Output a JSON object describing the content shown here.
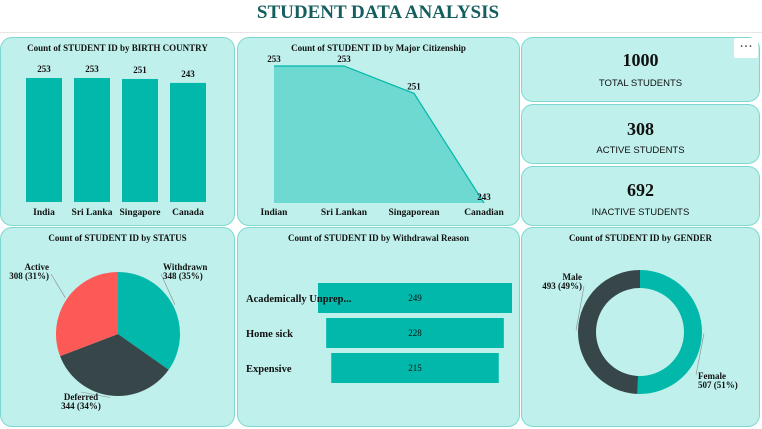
{
  "page": {
    "title": "STUDENT DATA ANALYSIS",
    "menu_label": "···"
  },
  "kpis": [
    {
      "value": "1000",
      "label": "TOTAL STUDENTS"
    },
    {
      "value": "308",
      "label": "ACTIVE STUDENTS"
    },
    {
      "value": "692",
      "label": "INACTIVE STUDENTS"
    }
  ],
  "colors": {
    "teal": "#01b8aa",
    "area": "#6ed9d1",
    "red": "#fd5a57",
    "dark": "#374649",
    "card_bg": "#bff0eb",
    "card_border": "#7fd8cf",
    "title": "#155e5e"
  },
  "chart_data": [
    {
      "id": "birth-country",
      "type": "bar",
      "title": "Count of STUDENT ID by BIRTH COUNTRY",
      "categories": [
        "India",
        "Sri Lanka",
        "Singapore",
        "Canada"
      ],
      "values": [
        253,
        253,
        251,
        243
      ],
      "data_labels": [
        "253",
        "253",
        "251",
        "243"
      ],
      "ylim": [
        0,
        253
      ]
    },
    {
      "id": "major-citizenship",
      "type": "area",
      "title": "Count of STUDENT ID by Major Citizenship",
      "categories": [
        "Indian",
        "Sri Lankan",
        "Singaporean",
        "Canadian"
      ],
      "values": [
        253,
        253,
        251,
        243
      ],
      "data_labels": [
        "253",
        "253",
        "251",
        "243"
      ],
      "ylim": [
        243,
        253
      ]
    },
    {
      "id": "status",
      "type": "pie",
      "title": "Count of STUDENT ID by STATUS",
      "slices": [
        {
          "name": "Withdrawn",
          "value": 348,
          "label": "348 (35%)",
          "color": "#01b8aa"
        },
        {
          "name": "Deferred",
          "value": 344,
          "label": "344 (34%)",
          "color": "#374649"
        },
        {
          "name": "Active",
          "value": 308,
          "label": "308 (31%)",
          "color": "#fd5a57"
        }
      ]
    },
    {
      "id": "withdrawal-reason",
      "type": "bar",
      "orientation": "funnel",
      "title": "Count of STUDENT ID by Withdrawal Reason",
      "categories": [
        "Academically Unprep...",
        "Home sick",
        "Expensive"
      ],
      "values": [
        249,
        228,
        215
      ],
      "data_labels": [
        "249",
        "228",
        "215"
      ]
    },
    {
      "id": "gender",
      "type": "pie",
      "style": "donut",
      "title": "Count of STUDENT ID by GENDER",
      "slices": [
        {
          "name": "Female",
          "value": 507,
          "label": "507 (51%)",
          "color": "#01b8aa"
        },
        {
          "name": "Male",
          "value": 493,
          "label": "493 (49%)",
          "color": "#374649"
        }
      ]
    }
  ]
}
